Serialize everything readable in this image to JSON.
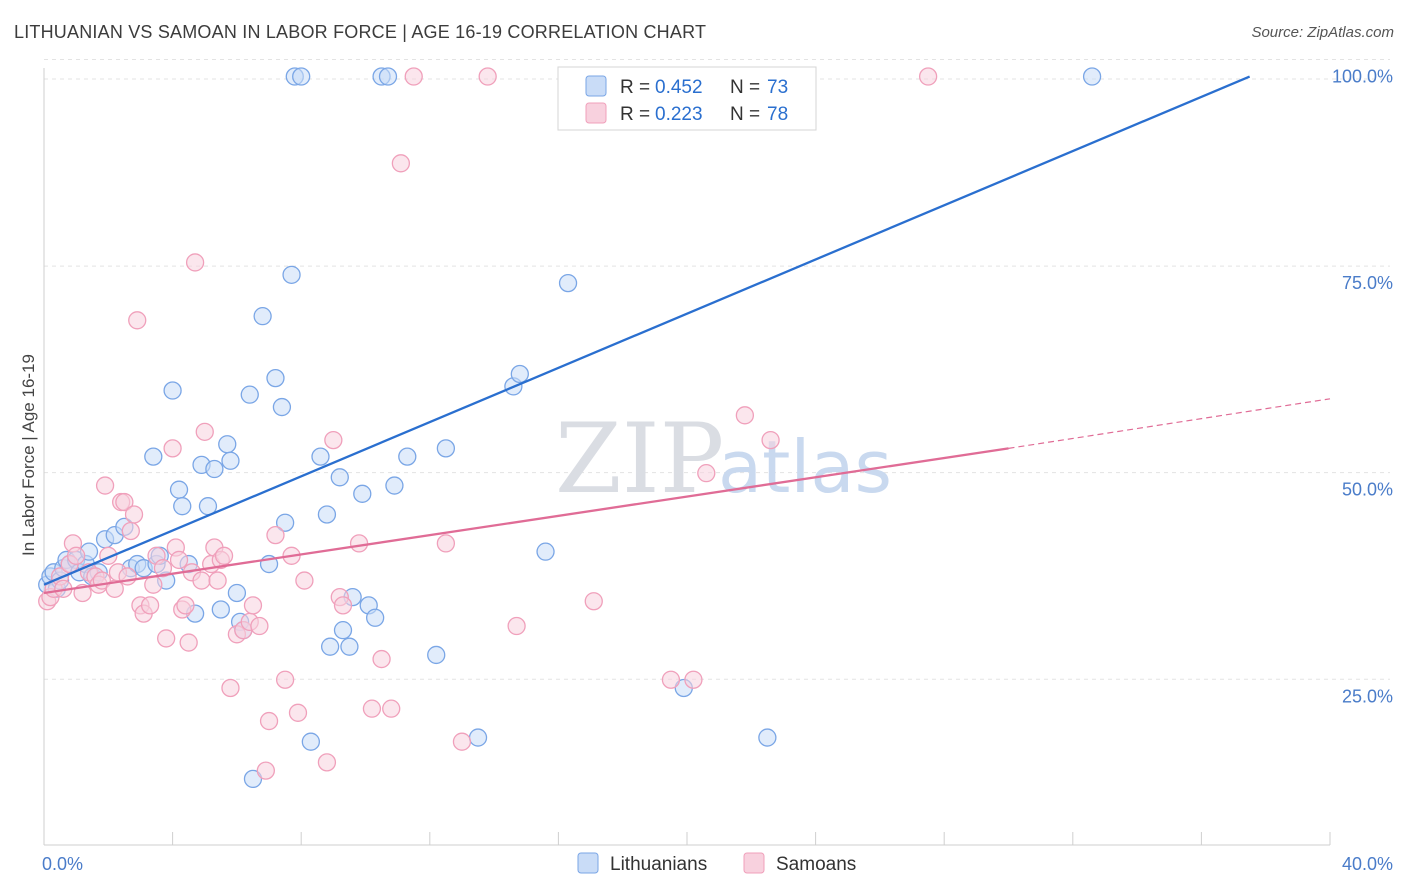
{
  "header": {
    "title": "LITHUANIAN VS SAMOAN IN LABOR FORCE | AGE 16-19 CORRELATION CHART",
    "source": "Source: ZipAtlas.com"
  },
  "watermark": {
    "zip": "ZIP",
    "atlas": "atlas"
  },
  "chart_data": {
    "type": "scatter",
    "ylabel": "In Labor Force | Age 16-19",
    "xlim": [
      0,
      40
    ],
    "ylim": [
      7,
      102
    ],
    "x_tick_labels": [
      {
        "value": 0,
        "label": "0.0%"
      },
      {
        "value": 40,
        "label": "40.0%"
      }
    ],
    "y_tick_labels": [
      {
        "value": 25,
        "label": "25.0%"
      },
      {
        "value": 50,
        "label": "50.0%"
      },
      {
        "value": 75,
        "label": "75.0%"
      },
      {
        "value": 100,
        "label": "100.0%"
      }
    ],
    "grid": true,
    "legend_placement": "top-center",
    "stats": [
      {
        "r_label": "R =",
        "r": "0.452",
        "n_label": "N =",
        "n": "73"
      },
      {
        "r_label": "R =",
        "r": "0.223",
        "n_label": "N =",
        "n": "78"
      }
    ],
    "series": [
      {
        "name": "Lithuanians",
        "color": "#7aa6e6",
        "fill": "#c9dcf7",
        "line_color": "#2a6fcf",
        "trend": {
          "x0": 0,
          "y0": 38.5,
          "x1": 37.5,
          "y1": 100,
          "dashed_to": null
        },
        "points": [
          [
            0.1,
            38.5
          ],
          [
            0.2,
            39.5
          ],
          [
            0.3,
            40
          ],
          [
            0.4,
            38
          ],
          [
            0.5,
            39
          ],
          [
            0.6,
            40.5
          ],
          [
            0.7,
            41.5
          ],
          [
            0.8,
            41
          ],
          [
            1.0,
            41.5
          ],
          [
            1.1,
            40
          ],
          [
            1.3,
            41
          ],
          [
            1.4,
            42.5
          ],
          [
            1.5,
            39.5
          ],
          [
            1.7,
            40
          ],
          [
            1.9,
            44
          ],
          [
            2.2,
            44.5
          ],
          [
            2.5,
            45.5
          ],
          [
            2.7,
            40.5
          ],
          [
            2.9,
            41
          ],
          [
            3.1,
            40.5
          ],
          [
            3.4,
            54
          ],
          [
            3.5,
            41
          ],
          [
            3.6,
            42
          ],
          [
            3.8,
            39
          ],
          [
            4.0,
            62
          ],
          [
            4.2,
            50
          ],
          [
            4.3,
            48
          ],
          [
            4.5,
            41
          ],
          [
            4.7,
            35
          ],
          [
            4.9,
            53
          ],
          [
            5.1,
            48
          ],
          [
            5.3,
            52.5
          ],
          [
            5.5,
            35.5
          ],
          [
            5.7,
            55.5
          ],
          [
            5.8,
            53.5
          ],
          [
            6.0,
            37.5
          ],
          [
            6.1,
            34
          ],
          [
            6.2,
            33
          ],
          [
            6.4,
            61.5
          ],
          [
            6.5,
            15
          ],
          [
            6.8,
            71
          ],
          [
            7.0,
            41
          ],
          [
            7.2,
            63.5
          ],
          [
            7.4,
            60
          ],
          [
            7.5,
            46
          ],
          [
            7.7,
            76
          ],
          [
            7.8,
            100
          ],
          [
            8.0,
            100
          ],
          [
            8.3,
            19.5
          ],
          [
            8.6,
            54
          ],
          [
            8.8,
            47
          ],
          [
            8.9,
            31
          ],
          [
            9.2,
            51.5
          ],
          [
            9.3,
            33
          ],
          [
            9.5,
            31
          ],
          [
            9.6,
            37
          ],
          [
            9.9,
            49.5
          ],
          [
            10.1,
            36
          ],
          [
            10.3,
            34.5
          ],
          [
            10.5,
            100
          ],
          [
            10.7,
            100
          ],
          [
            10.9,
            50.5
          ],
          [
            11.3,
            54
          ],
          [
            12.2,
            30
          ],
          [
            12.5,
            55
          ],
          [
            13.5,
            20
          ],
          [
            14.6,
            62.5
          ],
          [
            14.8,
            64
          ],
          [
            15.6,
            42.5
          ],
          [
            16.3,
            75
          ],
          [
            19.9,
            26
          ],
          [
            22.5,
            20
          ],
          [
            32.6,
            100
          ]
        ]
      },
      {
        "name": "Samoans",
        "color": "#f0a0bb",
        "fill": "#f8d1de",
        "line_color": "#e06c96",
        "trend": {
          "x0": 0,
          "y0": 37.5,
          "x1": 30,
          "y1": 55,
          "dashed_to": {
            "x": 40,
            "y": 61
          }
        },
        "points": [
          [
            0.1,
            36.5
          ],
          [
            0.2,
            37
          ],
          [
            0.3,
            38
          ],
          [
            0.5,
            39.5
          ],
          [
            0.6,
            38
          ],
          [
            0.8,
            41
          ],
          [
            0.9,
            43.5
          ],
          [
            1.0,
            42
          ],
          [
            1.2,
            37.5
          ],
          [
            1.4,
            40
          ],
          [
            1.6,
            39.5
          ],
          [
            1.7,
            38.5
          ],
          [
            1.8,
            39
          ],
          [
            1.9,
            50.5
          ],
          [
            2.0,
            42
          ],
          [
            2.2,
            38
          ],
          [
            2.3,
            40
          ],
          [
            2.4,
            48.5
          ],
          [
            2.5,
            48.5
          ],
          [
            2.6,
            39.5
          ],
          [
            2.7,
            45
          ],
          [
            2.8,
            47
          ],
          [
            2.9,
            70.5
          ],
          [
            3.0,
            36
          ],
          [
            3.1,
            35
          ],
          [
            3.3,
            36
          ],
          [
            3.4,
            38.5
          ],
          [
            3.5,
            42
          ],
          [
            3.7,
            40.5
          ],
          [
            3.8,
            32
          ],
          [
            4.0,
            55
          ],
          [
            4.1,
            43
          ],
          [
            4.2,
            41.5
          ],
          [
            4.3,
            35.5
          ],
          [
            4.4,
            36
          ],
          [
            4.5,
            31.5
          ],
          [
            4.6,
            40
          ],
          [
            4.7,
            77.5
          ],
          [
            4.9,
            39
          ],
          [
            5.0,
            57
          ],
          [
            5.2,
            41
          ],
          [
            5.3,
            43
          ],
          [
            5.4,
            39
          ],
          [
            5.5,
            41.5
          ],
          [
            5.6,
            42
          ],
          [
            5.8,
            26
          ],
          [
            6.0,
            32.5
          ],
          [
            6.2,
            33
          ],
          [
            6.4,
            34
          ],
          [
            6.5,
            36
          ],
          [
            6.7,
            33.5
          ],
          [
            6.9,
            16
          ],
          [
            7.0,
            22
          ],
          [
            7.2,
            44.5
          ],
          [
            7.5,
            27
          ],
          [
            7.7,
            42
          ],
          [
            7.9,
            23
          ],
          [
            8.1,
            39
          ],
          [
            8.8,
            17
          ],
          [
            9.0,
            56
          ],
          [
            9.2,
            37
          ],
          [
            9.3,
            36
          ],
          [
            9.8,
            43.5
          ],
          [
            10.2,
            23.5
          ],
          [
            10.5,
            29.5
          ],
          [
            10.8,
            23.5
          ],
          [
            11.1,
            89.5
          ],
          [
            11.5,
            100
          ],
          [
            12.5,
            43.5
          ],
          [
            13.0,
            19.5
          ],
          [
            13.8,
            100
          ],
          [
            14.7,
            33.5
          ],
          [
            17.1,
            36.5
          ],
          [
            19.5,
            27
          ],
          [
            20.2,
            27
          ],
          [
            20.6,
            52
          ],
          [
            21.8,
            59
          ],
          [
            22.6,
            56
          ]
        ],
        "extra_points": [
          [
            27.5,
            100
          ]
        ]
      }
    ]
  }
}
